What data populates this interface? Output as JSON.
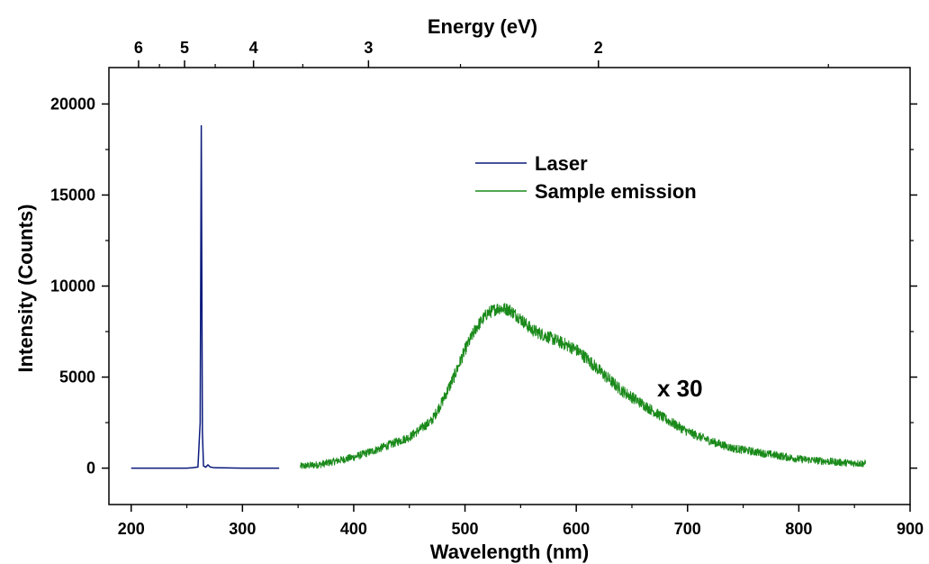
{
  "chart_data": {
    "type": "line",
    "xlabel": "Wavelength (nm)",
    "ylabel": "Intensity (Counts)",
    "top_axis_label": "Energy (eV)",
    "xlim": [
      180,
      900
    ],
    "ylim": [
      -2000,
      22000
    ],
    "x_ticks": [
      200,
      300,
      400,
      500,
      600,
      700,
      800,
      900
    ],
    "x_tick_labels": [
      "200",
      "300",
      "400",
      "500",
      "600",
      "700",
      "800",
      "900"
    ],
    "y_ticks": [
      0,
      5000,
      10000,
      15000,
      20000
    ],
    "y_tick_labels": [
      "0",
      "5000",
      "10000",
      "15000",
      "20000"
    ],
    "top_ticks_ev": [
      6,
      5,
      4,
      3,
      2
    ],
    "top_tick_labels": [
      "6",
      "5",
      "4",
      "3",
      "2"
    ],
    "top_minor_ticks_ev": [
      5.5,
      4.5,
      3.5,
      2.5,
      1.5
    ],
    "grid": false,
    "legend_position": "upper-right",
    "annotation": "x 30",
    "series": [
      {
        "name": "Laser",
        "color": "#0a1a7c",
        "x": [
          200,
          250,
          255,
          260,
          262,
          263,
          264,
          265,
          267,
          269,
          271,
          275,
          300,
          333
        ],
        "y": [
          0,
          0,
          20,
          60,
          2500,
          18800,
          2000,
          120,
          50,
          180,
          60,
          20,
          0,
          0
        ]
      },
      {
        "name": "Sample emission",
        "color": "#1a8a1a",
        "noise": 350,
        "x": [
          352,
          370,
          400,
          420,
          450,
          470,
          480,
          490,
          500,
          510,
          520,
          530,
          540,
          550,
          560,
          575,
          590,
          600,
          610,
          620,
          640,
          660,
          680,
          700,
          720,
          740,
          760,
          780,
          800,
          820,
          840,
          860
        ],
        "y": [
          100,
          200,
          600,
          1000,
          1700,
          2600,
          3700,
          5000,
          6500,
          7700,
          8500,
          8800,
          8700,
          8200,
          7600,
          7200,
          6800,
          6500,
          6000,
          5400,
          4300,
          3500,
          2700,
          2000,
          1500,
          1100,
          900,
          700,
          500,
          400,
          300,
          250
        ]
      }
    ]
  }
}
